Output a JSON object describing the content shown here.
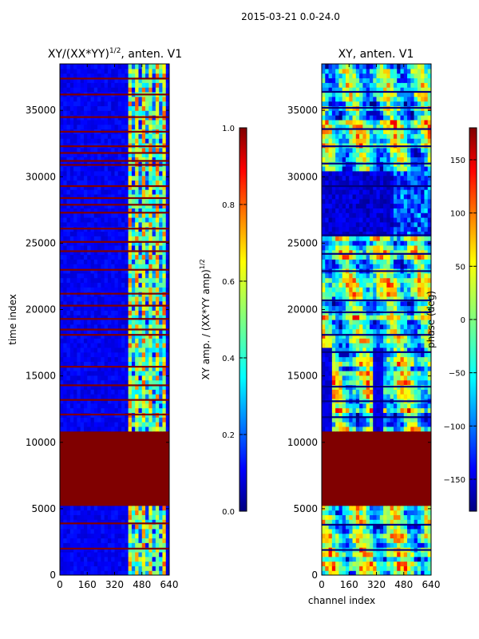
{
  "figure_title": "2015-03-21 0.0-24.0",
  "chart_data": [
    {
      "type": "heatmap",
      "title_main": "XY/(XX*YY)",
      "title_exp": "1/2",
      "title_rest": ", anten. V1",
      "xlabel": "",
      "ylabel": "time index",
      "xlim": [
        0,
        640
      ],
      "ylim": [
        0,
        38500
      ],
      "xticks": [
        "0",
        "160",
        "320",
        "480",
        "640"
      ],
      "yticks": [
        "0",
        "5000",
        "10000",
        "15000",
        "20000",
        "25000",
        "30000",
        "35000"
      ],
      "colormap": "jet",
      "zlim": [
        0.0,
        1.0
      ],
      "saturated_time_block": [
        5300,
        10800
      ],
      "active_channel_range": [
        400,
        620
      ],
      "flagged_rows": [
        2000,
        3900,
        12100,
        13200,
        14300,
        15700,
        18100,
        18500,
        19300,
        20300,
        21200,
        23000,
        24400,
        25100,
        26100,
        27300,
        27900,
        28400,
        29300,
        30900,
        31200,
        31800,
        32300,
        33400,
        34500,
        36200,
        37400
      ],
      "colorbar": {
        "label_main": "XY amp. / (XX*YY amp)",
        "label_exp": "1/2",
        "ticks": [
          "0.0",
          "0.2",
          "0.4",
          "0.6",
          "0.8",
          "1.0"
        ]
      }
    },
    {
      "type": "heatmap",
      "title": "XY, anten. V1",
      "xlabel": "channel index",
      "ylabel": "",
      "xlim": [
        0,
        640
      ],
      "ylim": [
        0,
        38500
      ],
      "xticks": [
        "0",
        "160",
        "320",
        "480",
        "640"
      ],
      "yticks": [
        "0",
        "5000",
        "10000",
        "15000",
        "20000",
        "25000",
        "30000",
        "35000"
      ],
      "colormap": "jet",
      "zlim": [
        -180,
        180
      ],
      "saturated_time_block": [
        5300,
        10800
      ],
      "low_phase_time_block": [
        25600,
        30500
      ],
      "flagged_rows": [
        1900,
        3800,
        11900,
        13100,
        14200,
        16800,
        18100,
        19800,
        20700,
        22900,
        24200,
        25600,
        29300,
        31000,
        32300,
        33600,
        35200,
        36400
      ],
      "colorbar": {
        "label": "phase (deg)",
        "ticks": [
          "150",
          "100",
          "50",
          "0",
          "−50",
          "−100",
          "−150"
        ]
      }
    }
  ]
}
